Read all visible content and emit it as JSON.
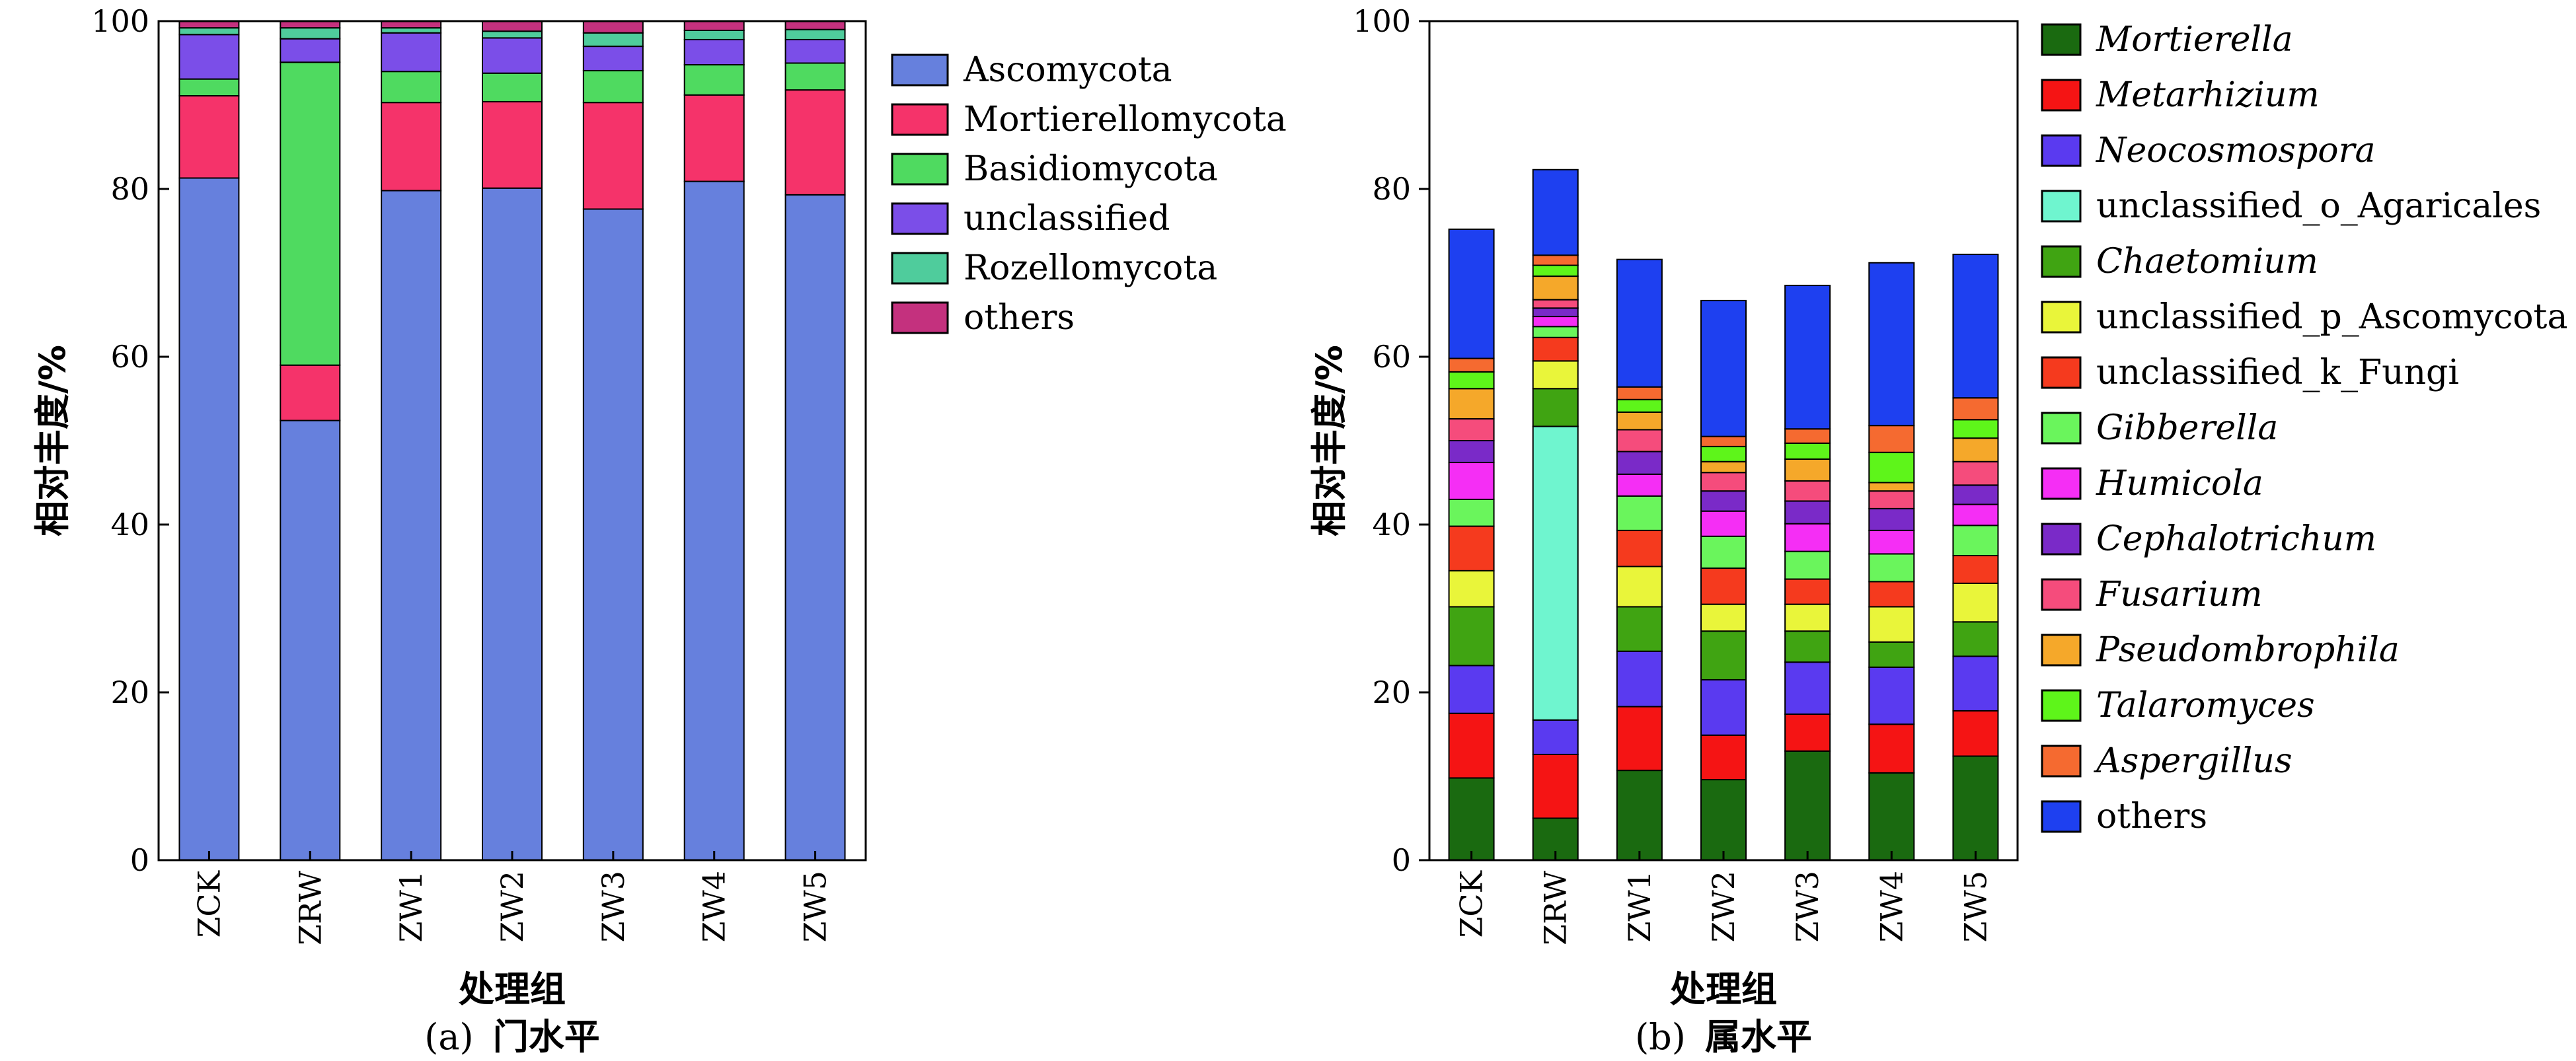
{
  "chart_data": [
    {
      "type": "bar",
      "stacked": true,
      "panel_label": "(a)",
      "caption": "门水平",
      "xlabel": "处理组",
      "ylabel": "相对丰度/%",
      "ylim": [
        0,
        100
      ],
      "yticks": [
        0,
        20,
        40,
        60,
        80,
        100
      ],
      "legend_position": "right",
      "categories": [
        "ZCK",
        "ZRW",
        "ZW1",
        "ZW2",
        "ZW3",
        "ZW4",
        "ZW5"
      ],
      "series": [
        {
          "name": "Ascomycota",
          "color": "#6680dd",
          "values": [
            81.3,
            52.4,
            79.8,
            80.1,
            77.6,
            80.9,
            79.3
          ]
        },
        {
          "name": "Mortierellomycota",
          "color": "#f5336a",
          "values": [
            9.8,
            6.6,
            10.5,
            10.3,
            12.7,
            10.3,
            12.5
          ]
        },
        {
          "name": "Basidiomycota",
          "color": "#4fda60",
          "values": [
            2.0,
            36.1,
            3.7,
            3.4,
            3.8,
            3.6,
            3.2
          ]
        },
        {
          "name": "unclassified",
          "color": "#7b4ee8",
          "values": [
            5.3,
            2.8,
            4.6,
            4.2,
            2.9,
            3.0,
            2.8
          ]
        },
        {
          "name": "Rozellomycota",
          "color": "#4fcc9c",
          "values": [
            0.8,
            1.3,
            0.6,
            0.8,
            1.6,
            1.1,
            1.2
          ]
        },
        {
          "name": "others",
          "color": "#c4317e",
          "values": [
            0.8,
            0.8,
            0.8,
            1.2,
            1.4,
            1.1,
            1.0
          ]
        }
      ]
    },
    {
      "type": "bar",
      "stacked": true,
      "panel_label": "(b)",
      "caption": "属水平",
      "xlabel": "处理组",
      "ylabel": "相对丰度/%",
      "ylim": [
        0,
        100
      ],
      "yticks": [
        0,
        20,
        40,
        60,
        80,
        100
      ],
      "legend_position": "right",
      "categories": [
        "ZCK",
        "ZRW",
        "ZW1",
        "ZW2",
        "ZW3",
        "ZW4",
        "ZW5"
      ],
      "series": [
        {
          "name": "Mortierella",
          "italic": true,
          "color": "#1a6a10",
          "values": [
            9.8,
            5.0,
            10.7,
            9.6,
            13.0,
            10.4,
            12.4
          ]
        },
        {
          "name": "Metarhizium",
          "italic": true,
          "color": "#f51414",
          "values": [
            7.7,
            7.6,
            7.6,
            5.3,
            4.4,
            5.8,
            5.4
          ]
        },
        {
          "name": "Neocosmospora",
          "italic": true,
          "color": "#5a3af0",
          "values": [
            5.7,
            4.1,
            6.6,
            6.6,
            6.2,
            6.8,
            6.5
          ]
        },
        {
          "name": "unclassified_o_Agaricales",
          "color": "#6ff5cf",
          "values": [
            0,
            35.0,
            0,
            0,
            0,
            0,
            0
          ]
        },
        {
          "name": "Chaetomium",
          "italic": true,
          "color": "#40a412",
          "values": [
            7.0,
            4.5,
            5.3,
            5.8,
            3.7,
            3.0,
            4.1
          ]
        },
        {
          "name": "unclassified_p_Ascomycota",
          "color": "#e9f53a",
          "values": [
            4.3,
            3.3,
            4.8,
            3.2,
            3.2,
            4.2,
            4.6
          ]
        },
        {
          "name": "unclassified_k_Fungi",
          "color": "#f53a1e",
          "values": [
            5.3,
            2.8,
            4.3,
            4.3,
            3.0,
            3.0,
            3.3
          ]
        },
        {
          "name": "Gibberella",
          "italic": true,
          "color": "#6af55c",
          "values": [
            3.2,
            1.3,
            4.1,
            3.8,
            3.3,
            3.3,
            3.6
          ]
        },
        {
          "name": "Humicola",
          "italic": true,
          "color": "#f52ef5",
          "values": [
            4.4,
            1.2,
            2.6,
            3.0,
            3.3,
            2.8,
            2.5
          ]
        },
        {
          "name": "Cephalotrichum",
          "italic": true,
          "color": "#7a2ac8",
          "values": [
            2.6,
            1.0,
            2.7,
            2.4,
            2.7,
            2.6,
            2.3
          ]
        },
        {
          "name": "Fusarium",
          "italic": true,
          "color": "#f54c7c",
          "values": [
            2.6,
            1.0,
            2.6,
            2.2,
            2.4,
            2.1,
            2.8
          ]
        },
        {
          "name": "Pseudombrophila",
          "italic": true,
          "color": "#f5a82a",
          "values": [
            3.6,
            2.8,
            2.1,
            1.3,
            2.6,
            1.0,
            2.8
          ]
        },
        {
          "name": "Talaromyces",
          "italic": true,
          "color": "#5ef51a",
          "values": [
            2.0,
            1.3,
            1.5,
            1.8,
            1.9,
            3.6,
            2.2
          ]
        },
        {
          "name": "Aspergillus",
          "italic": true,
          "color": "#f56a30",
          "values": [
            1.6,
            1.2,
            1.5,
            1.2,
            1.7,
            3.2,
            2.6
          ]
        },
        {
          "name": "others",
          "color": "#1e40f0",
          "values": [
            15.4,
            10.2,
            15.2,
            16.2,
            17.1,
            19.4,
            17.1
          ]
        }
      ]
    }
  ]
}
